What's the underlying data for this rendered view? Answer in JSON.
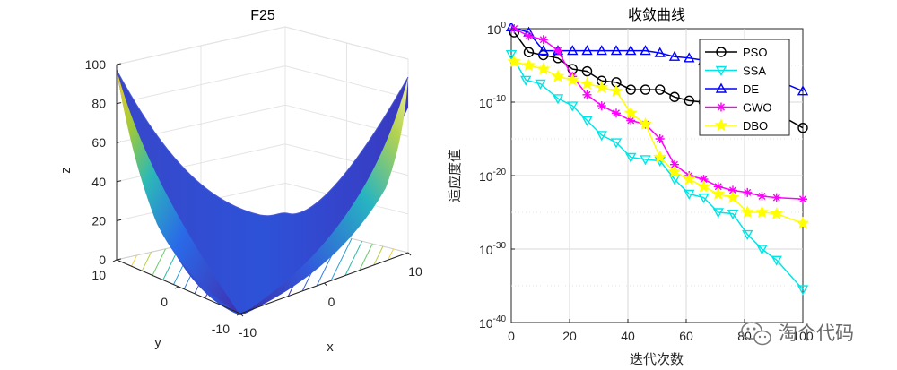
{
  "chart_data": [
    {
      "type": "surface",
      "title": "F25",
      "xlabel": "x",
      "ylabel": "y",
      "zlabel": "z",
      "xlim": [
        -10,
        10
      ],
      "ylim": [
        -10,
        10
      ],
      "zlim": [
        0,
        100
      ],
      "x_ticks": [
        "-10",
        "0",
        "10"
      ],
      "y_ticks": [
        "-10",
        "0",
        "10"
      ],
      "z_ticks": [
        "0",
        "20",
        "40",
        "60",
        "80",
        "100"
      ],
      "colormap": "parula",
      "contour_on_floor": true,
      "grid": true
    },
    {
      "type": "line",
      "title": "收敛曲线",
      "xlabel": "迭代次数",
      "ylabel": "适应度值",
      "yscale": "log",
      "xlim": [
        0,
        100
      ],
      "ylim_exponent": [
        -40,
        0
      ],
      "x_ticks": [
        "0",
        "20",
        "40",
        "60",
        "80",
        "100"
      ],
      "y_ticks": [
        {
          "base": "10",
          "exp": "0",
          "value": 0
        },
        {
          "base": "10",
          "exp": "-10",
          "value": -10
        },
        {
          "base": "10",
          "exp": "-20",
          "value": -20
        },
        {
          "base": "10",
          "exp": "-30",
          "value": -30
        },
        {
          "base": "10",
          "exp": "-40",
          "value": -40
        }
      ],
      "grid": true,
      "legend_position": "top-right",
      "series": [
        {
          "name": "PSO",
          "color": "#000000",
          "marker": "circle",
          "x": [
            1,
            6,
            11,
            16,
            21,
            26,
            31,
            36,
            41,
            46,
            51,
            56,
            61,
            66,
            71,
            76,
            81,
            86,
            91,
            100
          ],
          "log10y": [
            -0.5,
            -3.2,
            -3.6,
            -4.0,
            -5.5,
            -5.8,
            -7.1,
            -7.3,
            -8.3,
            -8.3,
            -8.3,
            -9.3,
            -9.8,
            -10.0,
            -10.3,
            -10.5,
            -10.7,
            -11.0,
            -11.5,
            -13.5
          ]
        },
        {
          "name": "SSA",
          "color": "#00e6e6",
          "marker": "triangle-down",
          "x": [
            0,
            5,
            10,
            16,
            21,
            26,
            31,
            36,
            41,
            46,
            51,
            56,
            61,
            66,
            71,
            76,
            81,
            86,
            91,
            100
          ],
          "log10y": [
            -3.5,
            -7.0,
            -7.5,
            -9.5,
            -10.5,
            -12.5,
            -14.5,
            -15.5,
            -17.5,
            -17.8,
            -18.0,
            -20.5,
            -22.5,
            -23.0,
            -25.0,
            -25.2,
            -28.0,
            -30.0,
            -31.5,
            -35.5
          ]
        },
        {
          "name": "DE",
          "color": "#0000ff",
          "marker": "triangle-up",
          "x": [
            0,
            6,
            11,
            16,
            21,
            26,
            31,
            36,
            41,
            46,
            51,
            56,
            61,
            66,
            71,
            76,
            81,
            86,
            91,
            100
          ],
          "log10y": [
            0.2,
            -0.5,
            -3.0,
            -3.0,
            -3.0,
            -3.0,
            -3.0,
            -3.0,
            -3.0,
            -3.0,
            -3.3,
            -3.8,
            -4.0,
            -4.3,
            -4.5,
            -5.0,
            -5.5,
            -6.0,
            -7.0,
            -8.5
          ]
        },
        {
          "name": "GWO",
          "color": "#ff00ff",
          "marker": "asterisk",
          "x": [
            1,
            6,
            11,
            16,
            21,
            26,
            31,
            36,
            41,
            46,
            51,
            56,
            61,
            66,
            71,
            76,
            81,
            86,
            91,
            100
          ],
          "log10y": [
            0.0,
            -1.0,
            -1.5,
            -3.0,
            -6.5,
            -9.0,
            -10.5,
            -11.5,
            -12.5,
            -13.0,
            -15.0,
            -18.5,
            -20.0,
            -20.5,
            -21.5,
            -22.0,
            -22.3,
            -22.8,
            -23.0,
            -23.2
          ]
        },
        {
          "name": "DBO",
          "color": "#ffff00",
          "marker": "star",
          "x": [
            1,
            6,
            11,
            16,
            21,
            26,
            31,
            36,
            41,
            46,
            51,
            56,
            61,
            66,
            71,
            76,
            81,
            86,
            91,
            100
          ],
          "log10y": [
            -4.5,
            -5.0,
            -5.5,
            -6.5,
            -7.0,
            -7.5,
            -8.0,
            -8.5,
            -11.5,
            -13.0,
            -17.5,
            -19.5,
            -20.5,
            -21.5,
            -22.5,
            -23.0,
            -25.0,
            -25.0,
            -25.2,
            -26.5
          ]
        }
      ]
    }
  ],
  "watermark": {
    "text": "淘个代码"
  }
}
